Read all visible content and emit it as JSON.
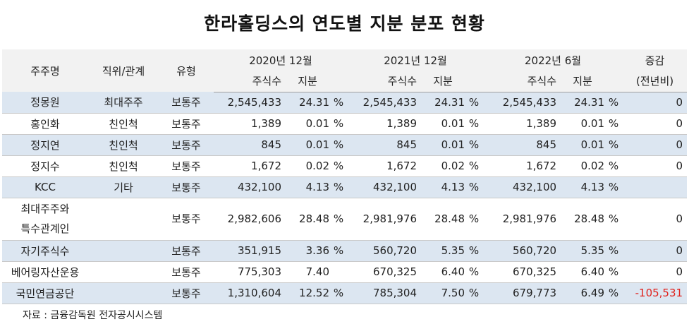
{
  "title": "한라홀딩스의 연도별 지분 분포 현황",
  "header": {
    "shareholder": "주주명",
    "position": "직위/관계",
    "type": "유형",
    "period1": "2020년 12월",
    "period2": "2021년 12월",
    "period3": "2022년 6월",
    "change_line1": "증감",
    "change_line2": "(전년비)",
    "shares": "주식수",
    "stake": "지분"
  },
  "rows": [
    {
      "name": "정몽원",
      "name2": "",
      "position": "최대주주",
      "type": "보통주",
      "s1": "2,545,433",
      "p1": "24.31",
      "u1": "%",
      "s2": "2,545,433",
      "p2": "24.31",
      "u2": "%",
      "s3": "2,545,433",
      "p3": "24.31",
      "u3": "%",
      "change": "0"
    },
    {
      "name": "홍인화",
      "name2": "",
      "position": "친인척",
      "type": "보통주",
      "s1": "1,389",
      "p1": "0.01",
      "u1": "%",
      "s2": "1,389",
      "p2": "0.01",
      "u2": "%",
      "s3": "1,389",
      "p3": "0.01",
      "u3": "%",
      "change": "0"
    },
    {
      "name": "정지연",
      "name2": "",
      "position": "친인척",
      "type": "보통주",
      "s1": "845",
      "p1": "0.01",
      "u1": "%",
      "s2": "845",
      "p2": "0.01",
      "u2": "%",
      "s3": "845",
      "p3": "0.01",
      "u3": "%",
      "change": "0"
    },
    {
      "name": "정지수",
      "name2": "",
      "position": "친인척",
      "type": "보통주",
      "s1": "1,672",
      "p1": "0.02",
      "u1": "%",
      "s2": "1,672",
      "p2": "0.02",
      "u2": "%",
      "s3": "1,672",
      "p3": "0.02",
      "u3": "%",
      "change": "0"
    },
    {
      "name": "KCC",
      "name2": "",
      "position": "기타",
      "type": "보통주",
      "s1": "432,100",
      "p1": "4.13",
      "u1": "%",
      "s2": "432,100",
      "p2": "4.13",
      "u2": "%",
      "s3": "432,100",
      "p3": "4.13",
      "u3": "%",
      "change": ""
    },
    {
      "name": "최대주주와",
      "name2": "특수관계인",
      "position": "",
      "type": "보통주",
      "s1": "2,982,606",
      "p1": "28.48",
      "u1": "%",
      "s2": "2,981,976",
      "p2": "28.48",
      "u2": "%",
      "s3": "2,981,976",
      "p3": "28.48",
      "u3": "%",
      "change": "0"
    },
    {
      "name": "자기주식수",
      "name2": "",
      "position": "",
      "type": "보통주",
      "s1": "351,915",
      "p1": "3.36",
      "u1": "%",
      "s2": "560,720",
      "p2": "5.35",
      "u2": "%",
      "s3": "560,720",
      "p3": "5.35",
      "u3": "%",
      "change": "0"
    },
    {
      "name": "베어링자산운용",
      "name2": "",
      "position": "",
      "type": "보통주",
      "s1": "775,303",
      "p1": "7.40",
      "u1": "",
      "s2": "670,325",
      "p2": "6.40",
      "u2": "%",
      "s3": "670,325",
      "p3": "6.40",
      "u3": "%",
      "change": "0"
    },
    {
      "name": "국민연금공단",
      "name2": "",
      "position": "",
      "type": "보통주",
      "s1": "1,310,604",
      "p1": "12.52",
      "u1": "%",
      "s2": "785,304",
      "p2": "7.50",
      "u2": "%",
      "s3": "679,773",
      "p3": "6.49",
      "u3": "%",
      "change": "-105,531"
    }
  ],
  "source": "자료 : 금융감독원 전자공시시스템",
  "colors": {
    "header_bg": "#f2f2f2",
    "row_blue": "#dce6f1",
    "negative": "#e0231e"
  }
}
